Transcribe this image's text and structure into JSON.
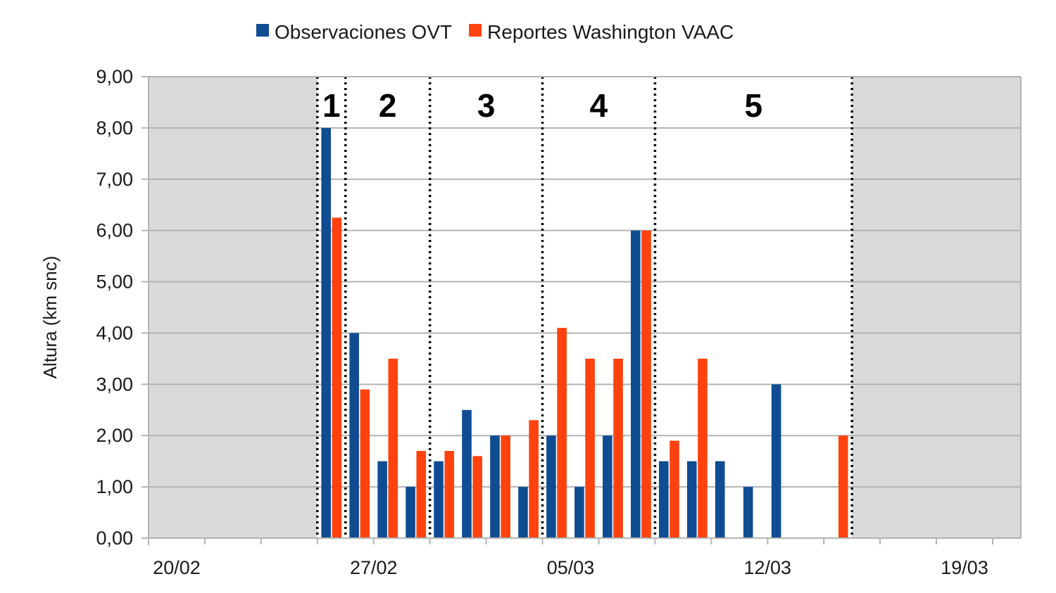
{
  "chart_data": {
    "type": "bar",
    "title": "",
    "xlabel": "",
    "ylabel": "Altura (km snc)",
    "ylim": [
      0,
      9
    ],
    "yticks": [
      "0,00",
      "1,00",
      "2,00",
      "3,00",
      "4,00",
      "5,00",
      "6,00",
      "7,00",
      "8,00",
      "9,00"
    ],
    "x_date_range": [
      "2024-02-19",
      "2024-03-21"
    ],
    "x_tick_labels": [
      {
        "date": "2024-02-20",
        "label": "20/02"
      },
      {
        "date": "2024-02-27",
        "label": "27/02"
      },
      {
        "date": "2024-03-05",
        "label": "05/03"
      },
      {
        "date": "2024-03-12",
        "label": "12/03"
      },
      {
        "date": "2024-03-19",
        "label": "19/03"
      }
    ],
    "grid": true,
    "legend_position": "top-center",
    "series": [
      {
        "name": "Observaciones OVT",
        "color": "#0f4c92",
        "points": [
          {
            "date": "2024-02-25",
            "value": 8.0
          },
          {
            "date": "2024-02-26",
            "value": 4.0
          },
          {
            "date": "2024-02-27",
            "value": 1.5
          },
          {
            "date": "2024-02-28",
            "value": 1.0
          },
          {
            "date": "2024-02-29",
            "value": 1.5
          },
          {
            "date": "2024-03-01",
            "value": 2.5
          },
          {
            "date": "2024-03-02",
            "value": 2.0
          },
          {
            "date": "2024-03-03",
            "value": 1.0
          },
          {
            "date": "2024-03-04",
            "value": 2.0
          },
          {
            "date": "2024-03-05",
            "value": 1.0
          },
          {
            "date": "2024-03-06",
            "value": 2.0
          },
          {
            "date": "2024-03-07",
            "value": 6.0
          },
          {
            "date": "2024-03-08",
            "value": 1.5
          },
          {
            "date": "2024-03-09",
            "value": 1.5
          },
          {
            "date": "2024-03-10",
            "value": 1.5
          },
          {
            "date": "2024-03-11",
            "value": 1.0
          },
          {
            "date": "2024-03-12",
            "value": 3.0
          }
        ]
      },
      {
        "name": "Reportes Washington VAAC",
        "color": "#ff420e",
        "points": [
          {
            "date": "2024-02-25",
            "value": 6.25
          },
          {
            "date": "2024-02-26",
            "value": 2.9
          },
          {
            "date": "2024-02-27",
            "value": 3.5
          },
          {
            "date": "2024-02-28",
            "value": 1.7
          },
          {
            "date": "2024-02-29",
            "value": 1.7
          },
          {
            "date": "2024-03-01",
            "value": 1.6
          },
          {
            "date": "2024-03-02",
            "value": 2.0
          },
          {
            "date": "2024-03-03",
            "value": 2.3
          },
          {
            "date": "2024-03-04",
            "value": 4.1
          },
          {
            "date": "2024-03-05",
            "value": 3.5
          },
          {
            "date": "2024-03-06",
            "value": 3.5
          },
          {
            "date": "2024-03-07",
            "value": 6.0
          },
          {
            "date": "2024-03-08",
            "value": 1.9
          },
          {
            "date": "2024-03-09",
            "value": 3.5
          },
          {
            "date": "2024-03-14",
            "value": 2.0
          }
        ]
      }
    ],
    "phases": [
      {
        "label": "1",
        "start": "2024-02-25",
        "end": "2024-02-26"
      },
      {
        "label": "2",
        "start": "2024-02-26",
        "end": "2024-02-29"
      },
      {
        "label": "3",
        "start": "2024-02-29",
        "end": "2024-03-04"
      },
      {
        "label": "4",
        "start": "2024-03-04",
        "end": "2024-03-08"
      },
      {
        "label": "5",
        "start": "2024-03-08",
        "end": "2024-03-15"
      }
    ],
    "shaded_regions": [
      {
        "start": "2024-02-19",
        "end": "2024-02-25"
      },
      {
        "start": "2024-03-15",
        "end": "2024-03-21"
      }
    ],
    "colors": {
      "shade": "#d9d9d9",
      "grid": "#b3b3b3",
      "axis": "#b3b3b3"
    }
  }
}
